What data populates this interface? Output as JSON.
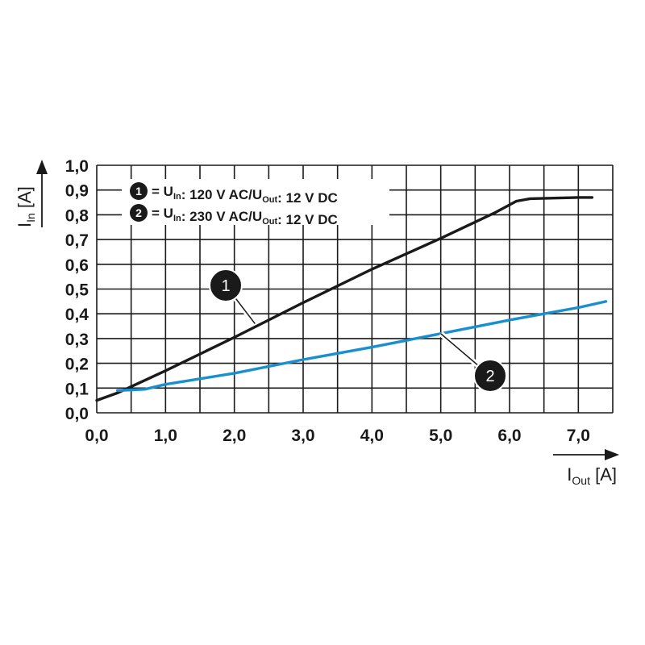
{
  "chart_data": {
    "type": "line",
    "x_ticks": [
      "0,0",
      "1,0",
      "2,0",
      "3,0",
      "4,0",
      "5,0",
      "6,0",
      "7,0"
    ],
    "y_ticks": [
      "0,0",
      "0,1",
      "0,2",
      "0,3",
      "0,4",
      "0,5",
      "0,6",
      "0,7",
      "0,8",
      "0,9",
      "1,0"
    ],
    "xlim": [
      0,
      7.5
    ],
    "ylim": [
      0,
      1.0
    ],
    "grid": true,
    "xlabel": {
      "main": "I",
      "sub": "Out",
      "unit": "[A]"
    },
    "ylabel": {
      "main": "I",
      "sub": "In",
      "unit": "[A]"
    },
    "legend_position": "top-left",
    "legend": [
      {
        "marker": "1",
        "pre": "= U",
        "sub1": "In",
        "mid": ": 120 V AC/U",
        "sub2": "Out",
        "post": ": 12 V DC"
      },
      {
        "marker": "2",
        "pre": "= U",
        "sub1": "In",
        "mid": ": 230 V AC/U",
        "sub2": "Out",
        "post": ": 12 V DC"
      }
    ],
    "series": [
      {
        "marker": "1",
        "color": "#1a1a1a",
        "points": [
          [
            0.0,
            0.05
          ],
          [
            0.3,
            0.08
          ],
          [
            1.0,
            0.17
          ],
          [
            2.0,
            0.305
          ],
          [
            3.0,
            0.445
          ],
          [
            4.0,
            0.58
          ],
          [
            5.0,
            0.705
          ],
          [
            5.8,
            0.81
          ],
          [
            6.1,
            0.855
          ],
          [
            6.3,
            0.865
          ],
          [
            7.0,
            0.87
          ],
          [
            7.2,
            0.87
          ]
        ]
      },
      {
        "marker": "2",
        "color": "#1a8fd0",
        "points": [
          [
            0.3,
            0.09
          ],
          [
            0.7,
            0.095
          ],
          [
            1.0,
            0.115
          ],
          [
            2.0,
            0.16
          ],
          [
            3.0,
            0.215
          ],
          [
            4.0,
            0.265
          ],
          [
            5.0,
            0.32
          ],
          [
            6.0,
            0.375
          ],
          [
            7.0,
            0.425
          ],
          [
            7.4,
            0.45
          ]
        ]
      }
    ],
    "callouts": [
      {
        "marker": "1",
        "anchor": [
          2.3,
          0.36
        ]
      },
      {
        "marker": "2",
        "anchor": [
          5.0,
          0.32
        ]
      }
    ]
  }
}
